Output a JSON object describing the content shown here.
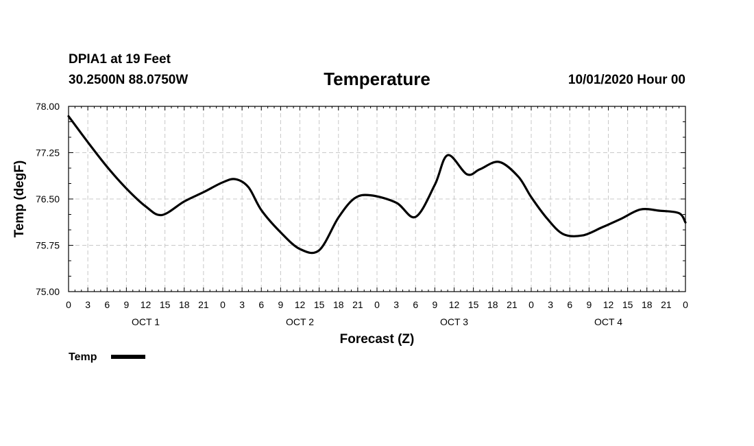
{
  "header": {
    "station": "DPIA1 at 19 Feet",
    "coords": "30.2500N 88.0750W",
    "title": "Temperature",
    "datetime": "10/01/2020 Hour 00"
  },
  "chart_data": {
    "type": "line",
    "title": "Temperature",
    "xlabel": "Forecast (Z)",
    "ylabel": "Temp (degF)",
    "ylim": [
      75.0,
      78.0
    ],
    "yticks": [
      "75.00",
      "75.75",
      "76.50",
      "77.25",
      "78.00"
    ],
    "xlim": [
      0,
      96
    ],
    "xtick_labels": [
      "0",
      "3",
      "6",
      "9",
      "12",
      "15",
      "18",
      "21",
      "0",
      "3",
      "6",
      "9",
      "12",
      "15",
      "18",
      "21",
      "0",
      "3",
      "6",
      "9",
      "12",
      "15",
      "18",
      "21",
      "0",
      "3",
      "6",
      "9",
      "12",
      "15",
      "18",
      "21",
      "0"
    ],
    "day_labels": [
      "OCT 1",
      "OCT 2",
      "OCT 3",
      "OCT 4"
    ],
    "grid": true,
    "legend": {
      "position": "bottom-left",
      "entries": [
        "Temp"
      ]
    },
    "series": [
      {
        "name": "Temp",
        "color": "#000000",
        "x": [
          0,
          3,
          6,
          9,
          12,
          14.5,
          18,
          21,
          24,
          26,
          28,
          30,
          33,
          36,
          39,
          42,
          44.5,
          47,
          51,
          54,
          57,
          59,
          62,
          64,
          67,
          70,
          72,
          74.5,
          77,
          80,
          83,
          86,
          89,
          92,
          95,
          96
        ],
        "y": [
          77.84,
          77.42,
          77.02,
          76.67,
          76.38,
          76.24,
          76.46,
          76.61,
          76.77,
          76.82,
          76.69,
          76.32,
          75.96,
          75.69,
          75.67,
          76.2,
          76.51,
          76.56,
          76.44,
          76.21,
          76.73,
          77.21,
          76.9,
          76.98,
          77.1,
          76.86,
          76.53,
          76.18,
          75.93,
          75.91,
          76.04,
          76.18,
          76.33,
          76.31,
          76.27,
          76.12
        ]
      }
    ]
  }
}
